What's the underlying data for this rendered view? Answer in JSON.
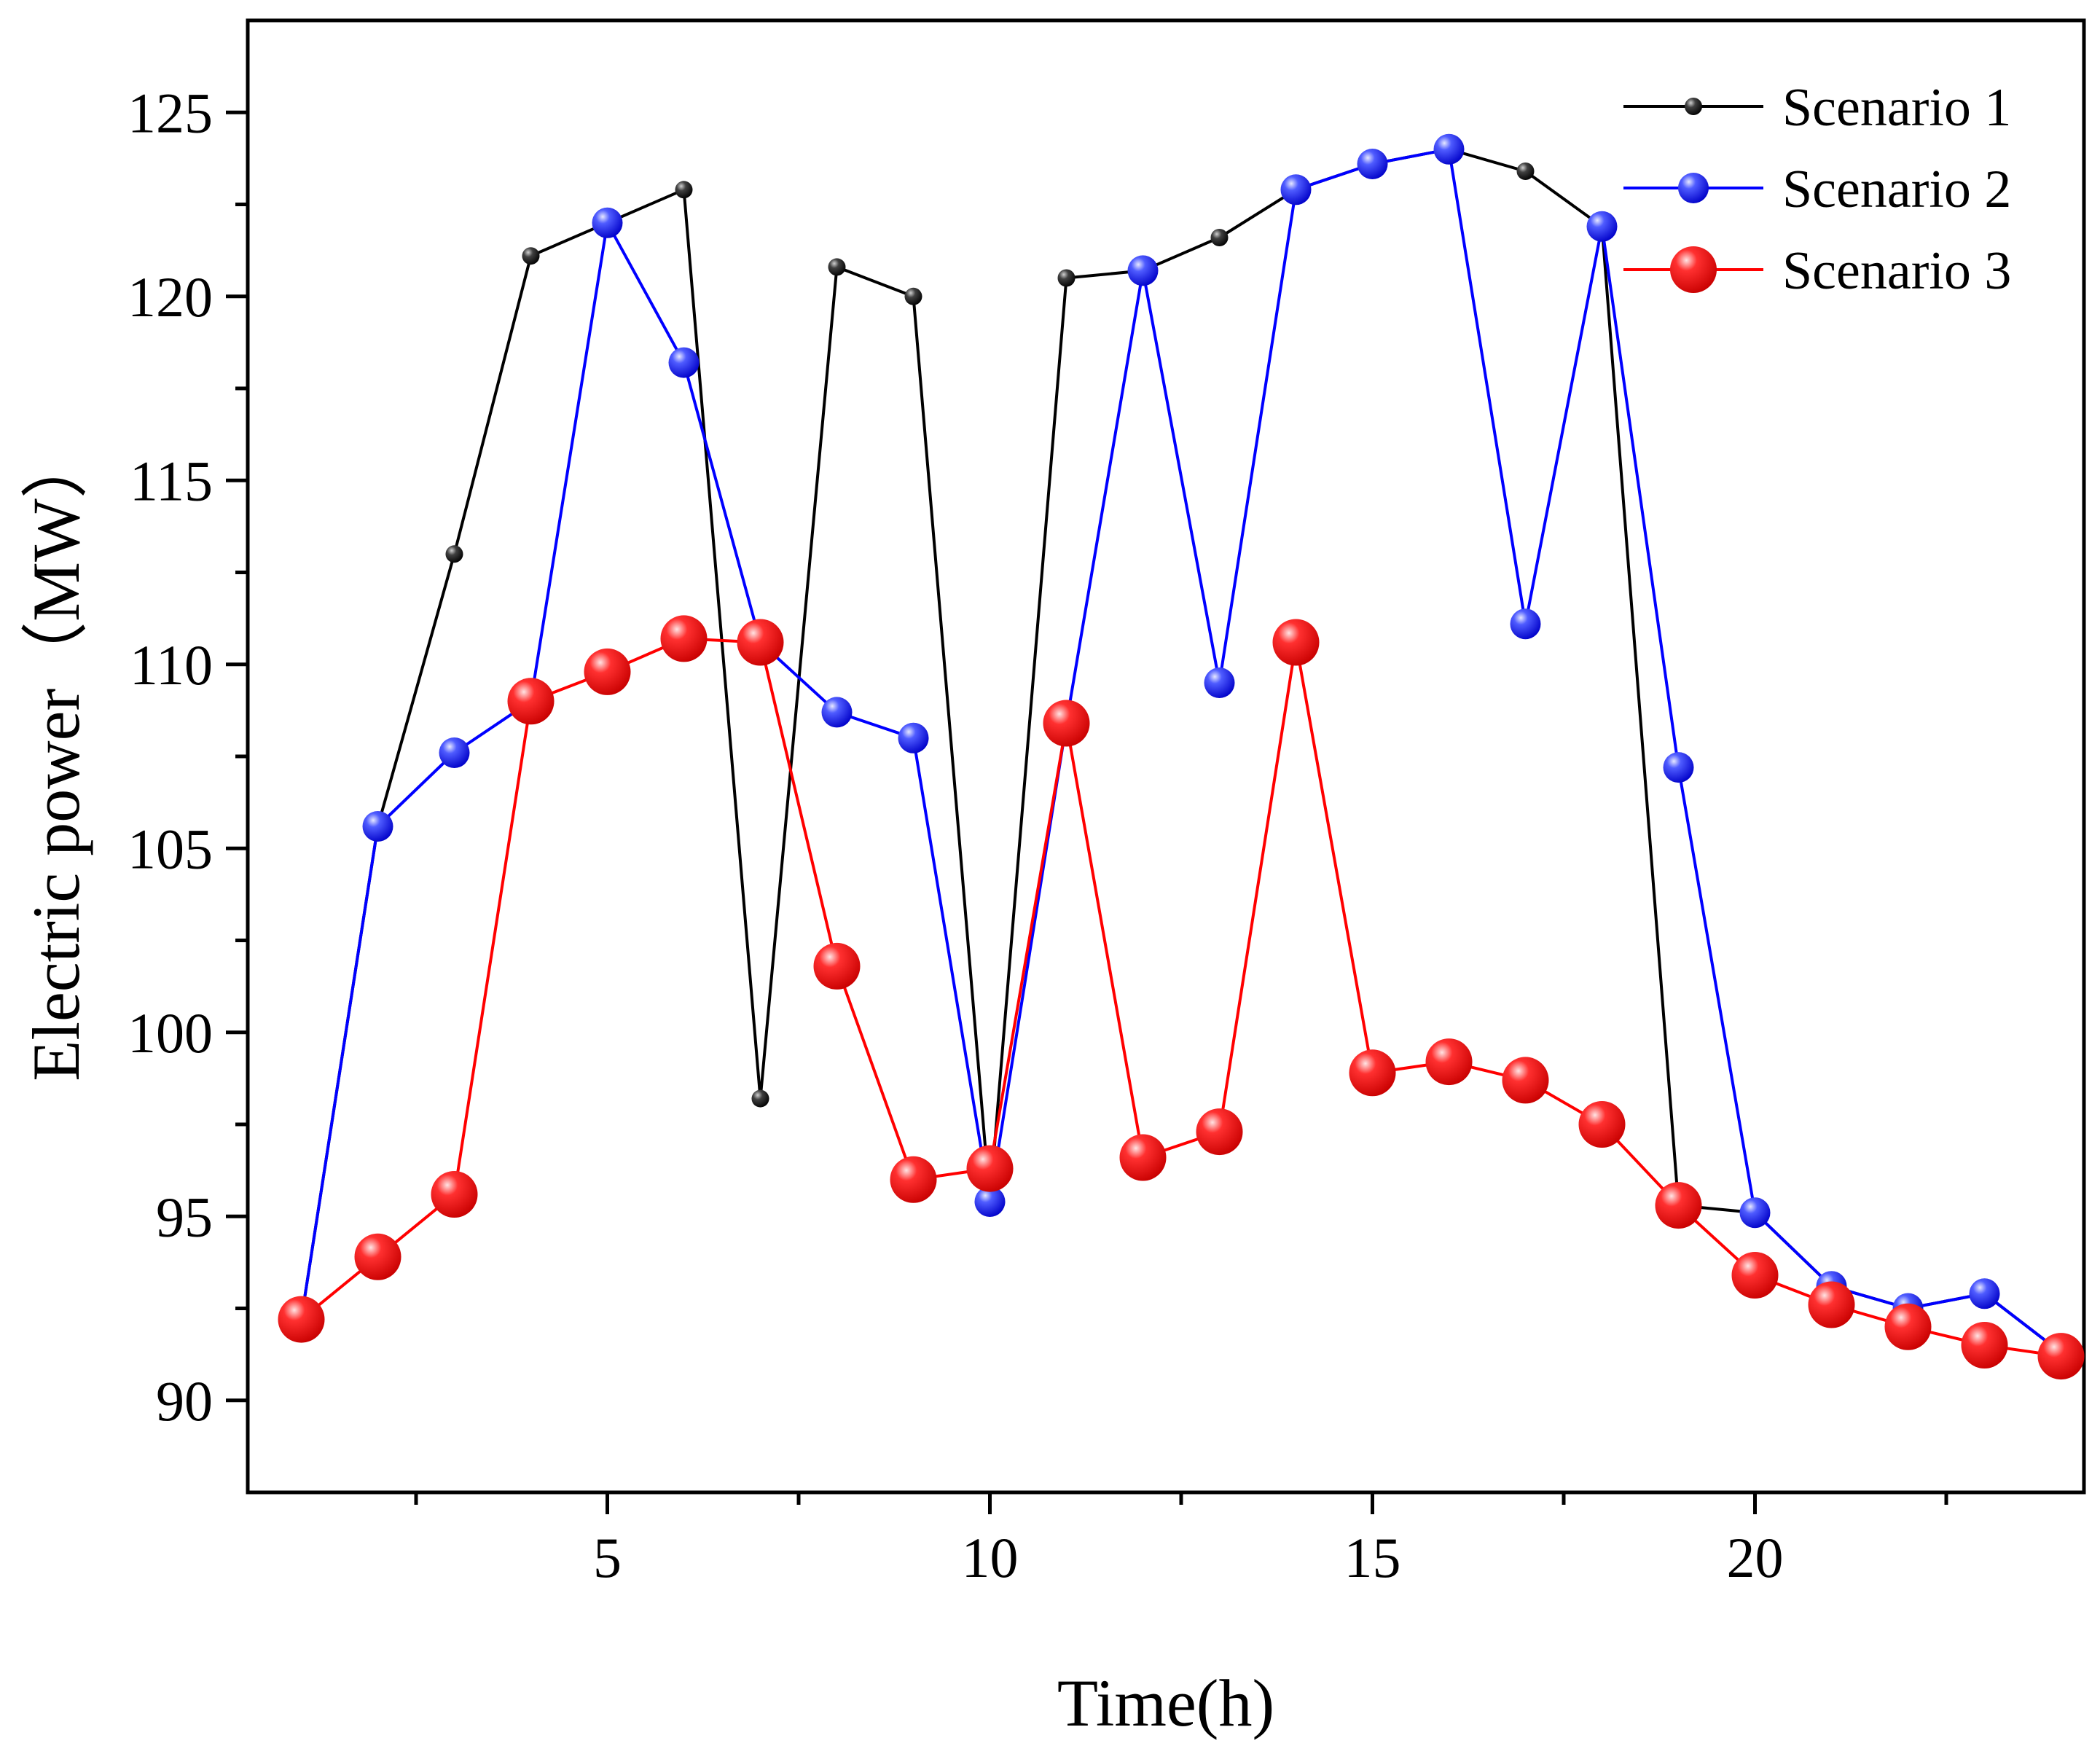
{
  "chart_data": {
    "type": "line",
    "title": "",
    "xlabel": "Time(h)",
    "ylabel": "Electric power（MW）",
    "xlim": [
      0.3,
      24.3
    ],
    "ylim": [
      87.5,
      127.5
    ],
    "x_ticks": [
      5,
      10,
      15,
      20
    ],
    "x_minor_ticks": [
      2.5,
      7.5,
      12.5,
      17.5,
      22.5
    ],
    "x_tick_labels": [
      "5",
      "10",
      "15",
      "20"
    ],
    "y_ticks": [
      90,
      95,
      100,
      105,
      110,
      115,
      120,
      125
    ],
    "y_tick_labels": [
      "90",
      "95",
      "100",
      "105",
      "110",
      "115",
      "120",
      "125"
    ],
    "grid": false,
    "legend_position": "top-right",
    "x": [
      1,
      2,
      3,
      4,
      5,
      6,
      7,
      8,
      9,
      10,
      11,
      12,
      13,
      14,
      15,
      16,
      17,
      18,
      19,
      20,
      21,
      22,
      23,
      24
    ],
    "series": [
      {
        "name": "Scenario 1",
        "color": "#000000",
        "marker": "small-sphere",
        "values": [
          92.2,
          105.6,
          113.0,
          121.1,
          122.0,
          122.9,
          98.2,
          120.8,
          120.0,
          95.4,
          120.5,
          120.7,
          121.6,
          122.9,
          123.6,
          124.0,
          123.4,
          121.9,
          95.3,
          95.1,
          93.1,
          92.5,
          92.9,
          91.3
        ]
      },
      {
        "name": "Scenario 2",
        "color": "#0000ff",
        "marker": "medium-sphere",
        "values": [
          92.2,
          105.6,
          107.6,
          109.0,
          122.0,
          118.2,
          110.6,
          108.7,
          108.0,
          95.4,
          108.4,
          120.7,
          109.5,
          122.9,
          123.6,
          124.0,
          111.1,
          121.9,
          107.2,
          95.1,
          93.1,
          92.5,
          92.9,
          91.3
        ]
      },
      {
        "name": "Scenario 3",
        "color": "#ff0000",
        "marker": "large-sphere",
        "values": [
          92.2,
          93.9,
          95.6,
          109.0,
          109.8,
          110.7,
          110.6,
          101.8,
          96.0,
          96.3,
          108.4,
          96.6,
          97.3,
          110.6,
          98.9,
          99.2,
          98.7,
          97.5,
          95.3,
          93.4,
          92.6,
          92.0,
          91.5,
          91.2
        ]
      }
    ]
  }
}
